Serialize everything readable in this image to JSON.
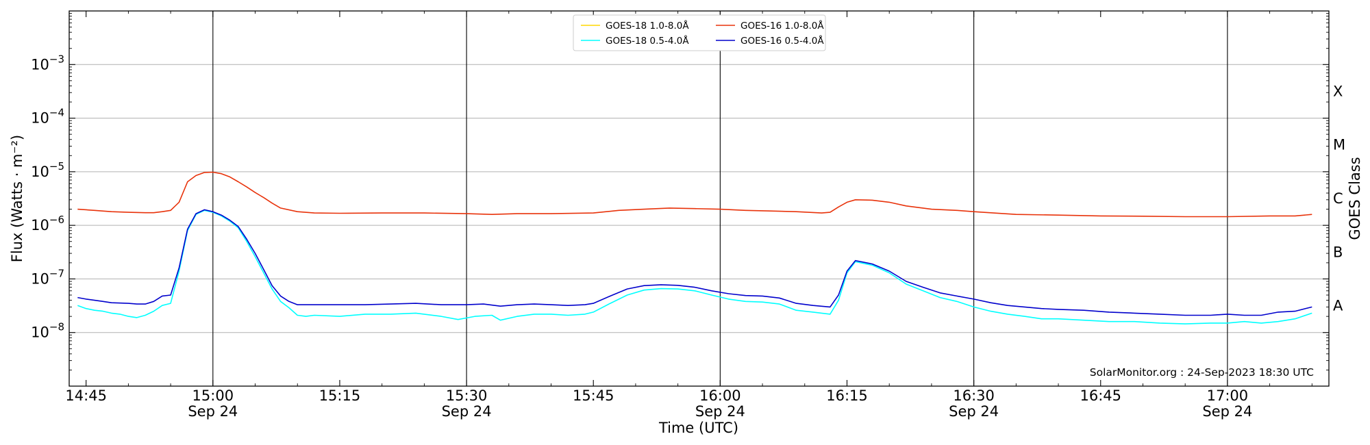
{
  "chart_data": {
    "type": "line",
    "xlabel": "Time (UTC)",
    "ylabel": "Flux (Watts · m⁻²)",
    "right_label": "GOES Class",
    "credit": "SolarMonitor.org : 24-Sep-2023 18:30 UTC",
    "date_label": "Sep 24",
    "xlim": [
      "14:43",
      "17:12"
    ],
    "ylim": [
      1e-09,
      0.01
    ],
    "yscale": "log",
    "grid": "horizontal",
    "legend_position": "top-center",
    "x_ticks": [
      {
        "time": "14:45",
        "label": "14:45",
        "date": false
      },
      {
        "time": "15:00",
        "label": "15:00",
        "date": true
      },
      {
        "time": "15:15",
        "label": "15:15",
        "date": false
      },
      {
        "time": "15:30",
        "label": "15:30",
        "date": true
      },
      {
        "time": "15:45",
        "label": "15:45",
        "date": false
      },
      {
        "time": "16:00",
        "label": "16:00",
        "date": true
      },
      {
        "time": "16:15",
        "label": "16:15",
        "date": false
      },
      {
        "time": "16:30",
        "label": "16:30",
        "date": true
      },
      {
        "time": "16:45",
        "label": "16:45",
        "date": false
      },
      {
        "time": "17:00",
        "label": "17:00",
        "date": true
      }
    ],
    "vlines": [
      "15:00",
      "15:30",
      "16:00",
      "16:30",
      "17:00"
    ],
    "y_ticks": [
      {
        "value": 1e-08,
        "mantissa": "10",
        "exp": "−8"
      },
      {
        "value": 1e-07,
        "mantissa": "10",
        "exp": "−7"
      },
      {
        "value": 1e-06,
        "mantissa": "10",
        "exp": "−6"
      },
      {
        "value": 1e-05,
        "mantissa": "10",
        "exp": "−5"
      },
      {
        "value": 0.0001,
        "mantissa": "10",
        "exp": "−4"
      },
      {
        "value": 0.001,
        "mantissa": "10",
        "exp": "−3"
      }
    ],
    "goes_classes": [
      {
        "label": "A",
        "value": 3.16e-08
      },
      {
        "label": "B",
        "value": 3.16e-07
      },
      {
        "label": "C",
        "value": 3.16e-06
      },
      {
        "label": "M",
        "value": 3.16e-05
      },
      {
        "label": "X",
        "value": 0.000316
      }
    ],
    "legend": [
      {
        "label": "GOES-18 1.0-8.0Å",
        "color": "#ffd700"
      },
      {
        "label": "GOES-18 0.5-4.0Å",
        "color": "#00ffff"
      },
      {
        "label": "GOES-16 1.0-8.0Å",
        "color": "#e8320a"
      },
      {
        "label": "GOES-16 0.5-4.0Å",
        "color": "#0000cc"
      }
    ],
    "series": [
      {
        "name": "GOES-16 1.0-8.0Å",
        "color": "#e8320a",
        "points": [
          [
            "14:44",
            2e-06
          ],
          [
            "14:46",
            1.9e-06
          ],
          [
            "14:48",
            1.8e-06
          ],
          [
            "14:50",
            1.75e-06
          ],
          [
            "14:52",
            1.72e-06
          ],
          [
            "14:53",
            1.72e-06
          ],
          [
            "14:54",
            1.8e-06
          ],
          [
            "14:55",
            1.9e-06
          ],
          [
            "14:56",
            2.7e-06
          ],
          [
            "14:57",
            6.5e-06
          ],
          [
            "14:58",
            8.5e-06
          ],
          [
            "14:59",
            9.7e-06
          ],
          [
            "15:00",
            9.8e-06
          ],
          [
            "15:01",
            9.2e-06
          ],
          [
            "15:02",
            8e-06
          ],
          [
            "15:03",
            6.5e-06
          ],
          [
            "15:04",
            5.2e-06
          ],
          [
            "15:05",
            4.1e-06
          ],
          [
            "15:06",
            3.3e-06
          ],
          [
            "15:07",
            2.6e-06
          ],
          [
            "15:08",
            2.1e-06
          ],
          [
            "15:10",
            1.8e-06
          ],
          [
            "15:12",
            1.7e-06
          ],
          [
            "15:15",
            1.68e-06
          ],
          [
            "15:20",
            1.7e-06
          ],
          [
            "15:25",
            1.7e-06
          ],
          [
            "15:30",
            1.65e-06
          ],
          [
            "15:33",
            1.6e-06
          ],
          [
            "15:36",
            1.65e-06
          ],
          [
            "15:40",
            1.65e-06
          ],
          [
            "15:45",
            1.7e-06
          ],
          [
            "15:48",
            1.9e-06
          ],
          [
            "15:51",
            2e-06
          ],
          [
            "15:54",
            2.1e-06
          ],
          [
            "15:57",
            2.05e-06
          ],
          [
            "16:00",
            2e-06
          ],
          [
            "16:03",
            1.9e-06
          ],
          [
            "16:06",
            1.85e-06
          ],
          [
            "16:09",
            1.8e-06
          ],
          [
            "16:12",
            1.7e-06
          ],
          [
            "16:13",
            1.75e-06
          ],
          [
            "16:14",
            2.2e-06
          ],
          [
            "16:15",
            2.7e-06
          ],
          [
            "16:16",
            3e-06
          ],
          [
            "16:18",
            2.95e-06
          ],
          [
            "16:20",
            2.7e-06
          ],
          [
            "16:22",
            2.3e-06
          ],
          [
            "16:25",
            2e-06
          ],
          [
            "16:28",
            1.9e-06
          ],
          [
            "16:30",
            1.8e-06
          ],
          [
            "16:35",
            1.6e-06
          ],
          [
            "16:40",
            1.55e-06
          ],
          [
            "16:45",
            1.5e-06
          ],
          [
            "16:50",
            1.48e-06
          ],
          [
            "16:55",
            1.45e-06
          ],
          [
            "17:00",
            1.45e-06
          ],
          [
            "17:05",
            1.5e-06
          ],
          [
            "17:08",
            1.5e-06
          ],
          [
            "17:10",
            1.6e-06
          ]
        ]
      },
      {
        "name": "GOES-18 0.5-4.0Å",
        "color": "#00ffff",
        "points": [
          [
            "14:44",
            3.2e-08
          ],
          [
            "14:45",
            2.8e-08
          ],
          [
            "14:46",
            2.6e-08
          ],
          [
            "14:47",
            2.5e-08
          ],
          [
            "14:48",
            2.3e-08
          ],
          [
            "14:49",
            2.2e-08
          ],
          [
            "14:50",
            2e-08
          ],
          [
            "14:51",
            1.9e-08
          ],
          [
            "14:52",
            2.1e-08
          ],
          [
            "14:53",
            2.5e-08
          ],
          [
            "14:54",
            3.2e-08
          ],
          [
            "14:55",
            3.5e-08
          ],
          [
            "14:56",
            1.4e-07
          ],
          [
            "14:57",
            8e-07
          ],
          [
            "14:58",
            1.6e-06
          ],
          [
            "14:59",
            1.9e-06
          ],
          [
            "15:00",
            1.75e-06
          ],
          [
            "15:01",
            1.5e-06
          ],
          [
            "15:02",
            1.2e-06
          ],
          [
            "15:03",
            9e-07
          ],
          [
            "15:04",
            5e-07
          ],
          [
            "15:05",
            2.6e-07
          ],
          [
            "15:06",
            1.3e-07
          ],
          [
            "15:07",
            6.5e-08
          ],
          [
            "15:08",
            3.8e-08
          ],
          [
            "15:09",
            2.9e-08
          ],
          [
            "15:10",
            2.1e-08
          ],
          [
            "15:11",
            2e-08
          ],
          [
            "15:12",
            2.1e-08
          ],
          [
            "15:15",
            2e-08
          ],
          [
            "15:18",
            2.2e-08
          ],
          [
            "15:21",
            2.2e-08
          ],
          [
            "15:24",
            2.3e-08
          ],
          [
            "15:27",
            2e-08
          ],
          [
            "15:29",
            1.75e-08
          ],
          [
            "15:31",
            2e-08
          ],
          [
            "15:33",
            2.1e-08
          ],
          [
            "15:34",
            1.7e-08
          ],
          [
            "15:36",
            2e-08
          ],
          [
            "15:38",
            2.2e-08
          ],
          [
            "15:40",
            2.2e-08
          ],
          [
            "15:42",
            2.1e-08
          ],
          [
            "15:44",
            2.2e-08
          ],
          [
            "15:45",
            2.4e-08
          ],
          [
            "15:47",
            3.5e-08
          ],
          [
            "15:49",
            5e-08
          ],
          [
            "15:51",
            6.2e-08
          ],
          [
            "15:53",
            6.6e-08
          ],
          [
            "15:55",
            6.5e-08
          ],
          [
            "15:57",
            6e-08
          ],
          [
            "15:59",
            5e-08
          ],
          [
            "16:01",
            4.2e-08
          ],
          [
            "16:03",
            3.8e-08
          ],
          [
            "16:05",
            3.7e-08
          ],
          [
            "16:07",
            3.4e-08
          ],
          [
            "16:09",
            2.6e-08
          ],
          [
            "16:11",
            2.4e-08
          ],
          [
            "16:13",
            2.2e-08
          ],
          [
            "16:14",
            4e-08
          ],
          [
            "16:15",
            1.3e-07
          ],
          [
            "16:16",
            2.1e-07
          ],
          [
            "16:18",
            1.8e-07
          ],
          [
            "16:20",
            1.3e-07
          ],
          [
            "16:22",
            8e-08
          ],
          [
            "16:24",
            6e-08
          ],
          [
            "16:26",
            4.5e-08
          ],
          [
            "16:28",
            3.8e-08
          ],
          [
            "16:30",
            3e-08
          ],
          [
            "16:32",
            2.5e-08
          ],
          [
            "16:34",
            2.2e-08
          ],
          [
            "16:36",
            2e-08
          ],
          [
            "16:38",
            1.8e-08
          ],
          [
            "16:40",
            1.8e-08
          ],
          [
            "16:43",
            1.7e-08
          ],
          [
            "16:46",
            1.6e-08
          ],
          [
            "16:49",
            1.6e-08
          ],
          [
            "16:52",
            1.5e-08
          ],
          [
            "16:55",
            1.45e-08
          ],
          [
            "16:58",
            1.5e-08
          ],
          [
            "17:00",
            1.5e-08
          ],
          [
            "17:02",
            1.6e-08
          ],
          [
            "17:04",
            1.5e-08
          ],
          [
            "17:06",
            1.6e-08
          ],
          [
            "17:08",
            1.8e-08
          ],
          [
            "17:10",
            2.3e-08
          ]
        ]
      },
      {
        "name": "GOES-16 0.5-4.0Å",
        "color": "#0000cc",
        "points": [
          [
            "14:44",
            4.5e-08
          ],
          [
            "14:45",
            4.2e-08
          ],
          [
            "14:46",
            4e-08
          ],
          [
            "14:47",
            3.8e-08
          ],
          [
            "14:48",
            3.6e-08
          ],
          [
            "14:50",
            3.5e-08
          ],
          [
            "14:51",
            3.4e-08
          ],
          [
            "14:52",
            3.4e-08
          ],
          [
            "14:53",
            3.8e-08
          ],
          [
            "14:54",
            4.8e-08
          ],
          [
            "14:55",
            5e-08
          ],
          [
            "14:56",
            1.6e-07
          ],
          [
            "14:57",
            8.5e-07
          ],
          [
            "14:58",
            1.65e-06
          ],
          [
            "14:59",
            1.95e-06
          ],
          [
            "15:00",
            1.8e-06
          ],
          [
            "15:01",
            1.55e-06
          ],
          [
            "15:02",
            1.25e-06
          ],
          [
            "15:03",
            9.5e-07
          ],
          [
            "15:04",
            5.5e-07
          ],
          [
            "15:05",
            3e-07
          ],
          [
            "15:06",
            1.5e-07
          ],
          [
            "15:07",
            7.5e-08
          ],
          [
            "15:08",
            4.8e-08
          ],
          [
            "15:09",
            3.8e-08
          ],
          [
            "15:10",
            3.3e-08
          ],
          [
            "15:12",
            3.3e-08
          ],
          [
            "15:15",
            3.3e-08
          ],
          [
            "15:18",
            3.3e-08
          ],
          [
            "15:21",
            3.4e-08
          ],
          [
            "15:24",
            3.5e-08
          ],
          [
            "15:27",
            3.3e-08
          ],
          [
            "15:30",
            3.3e-08
          ],
          [
            "15:32",
            3.4e-08
          ],
          [
            "15:34",
            3.1e-08
          ],
          [
            "15:36",
            3.3e-08
          ],
          [
            "15:38",
            3.4e-08
          ],
          [
            "15:40",
            3.3e-08
          ],
          [
            "15:42",
            3.2e-08
          ],
          [
            "15:44",
            3.3e-08
          ],
          [
            "15:45",
            3.5e-08
          ],
          [
            "15:47",
            4.8e-08
          ],
          [
            "15:49",
            6.5e-08
          ],
          [
            "15:51",
            7.5e-08
          ],
          [
            "15:53",
            7.8e-08
          ],
          [
            "15:55",
            7.6e-08
          ],
          [
            "15:57",
            7e-08
          ],
          [
            "15:59",
            6e-08
          ],
          [
            "16:01",
            5.3e-08
          ],
          [
            "16:03",
            4.9e-08
          ],
          [
            "16:05",
            4.8e-08
          ],
          [
            "16:07",
            4.4e-08
          ],
          [
            "16:09",
            3.5e-08
          ],
          [
            "16:11",
            3.2e-08
          ],
          [
            "16:13",
            3e-08
          ],
          [
            "16:14",
            5e-08
          ],
          [
            "16:15",
            1.4e-07
          ],
          [
            "16:16",
            2.2e-07
          ],
          [
            "16:18",
            1.9e-07
          ],
          [
            "16:20",
            1.4e-07
          ],
          [
            "16:22",
            9e-08
          ],
          [
            "16:24",
            7e-08
          ],
          [
            "16:26",
            5.5e-08
          ],
          [
            "16:28",
            4.8e-08
          ],
          [
            "16:30",
            4.2e-08
          ],
          [
            "16:32",
            3.6e-08
          ],
          [
            "16:34",
            3.2e-08
          ],
          [
            "16:36",
            3e-08
          ],
          [
            "16:38",
            2.8e-08
          ],
          [
            "16:40",
            2.7e-08
          ],
          [
            "16:43",
            2.6e-08
          ],
          [
            "16:46",
            2.4e-08
          ],
          [
            "16:49",
            2.3e-08
          ],
          [
            "16:52",
            2.2e-08
          ],
          [
            "16:55",
            2.1e-08
          ],
          [
            "16:58",
            2.1e-08
          ],
          [
            "17:00",
            2.2e-08
          ],
          [
            "17:02",
            2.1e-08
          ],
          [
            "17:04",
            2.1e-08
          ],
          [
            "17:06",
            2.4e-08
          ],
          [
            "17:08",
            2.5e-08
          ],
          [
            "17:10",
            3e-08
          ]
        ]
      }
    ]
  }
}
